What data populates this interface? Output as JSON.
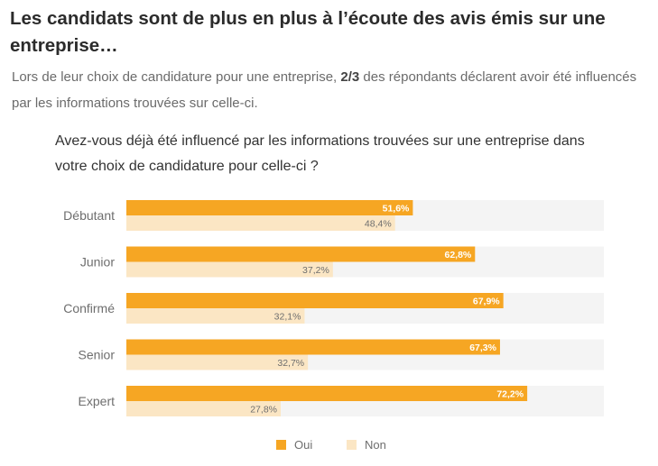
{
  "page": {
    "headline": "Les candidats sont de plus en plus à l’écoute des avis émis sur une entreprise…",
    "intro_before": "Lors de leur choix de candidature pour une entreprise, ",
    "intro_bold": "2/3",
    "intro_after": " des répondants déclarent avoir été influencés par les informations trouvées sur celle-ci."
  },
  "chart_data": {
    "type": "bar",
    "orientation": "horizontal",
    "title": "Avez-vous déjà été influencé par les informations trouvées sur une entreprise dans votre choix de candidature pour celle-ci ?",
    "categories": [
      "Débutant",
      "Junior",
      "Confirmé",
      "Senior",
      "Expert"
    ],
    "series": [
      {
        "name": "Oui",
        "color": "#f6a623",
        "values": [
          51.6,
          62.8,
          67.9,
          67.3,
          72.2
        ],
        "labels": [
          "51,6%",
          "62,8%",
          "67,9%",
          "67,3%",
          "72,2%"
        ]
      },
      {
        "name": "Non",
        "color": "#fbe6c4",
        "values": [
          48.4,
          37.2,
          32.1,
          32.7,
          27.8
        ],
        "labels": [
          "48,4%",
          "37,2%",
          "32,1%",
          "32,7%",
          "27,8%"
        ]
      }
    ],
    "xlim": [
      0,
      86
    ],
    "grid": false,
    "legend": "bottom-center",
    "track_color": "#f4f4f4"
  }
}
